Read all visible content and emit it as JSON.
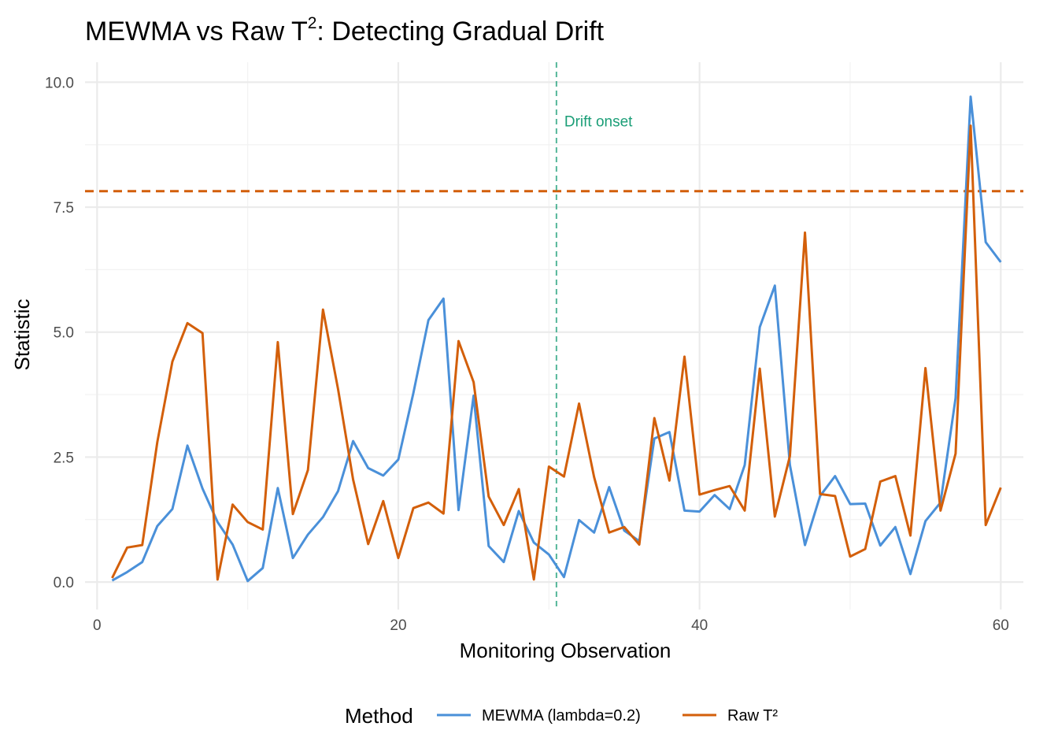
{
  "chart_data": {
    "type": "line",
    "title_main": "MEWMA vs Raw T",
    "title_sup": "2",
    "title_tail": ": Detecting Gradual Drift",
    "xlabel": "Monitoring Observation",
    "ylabel": "Statistic",
    "xlim": [
      -0.8,
      61.5
    ],
    "ylim": [
      -0.55,
      10.4
    ],
    "x_ticks": [
      0,
      20,
      40,
      60
    ],
    "x_tick_labels": [
      "0",
      "20",
      "40",
      "60"
    ],
    "y_ticks": [
      0,
      2.5,
      5,
      7.5,
      10
    ],
    "y_tick_labels": [
      "0.0",
      "2.5",
      "5.0",
      "7.5",
      "10.0"
    ],
    "x": [
      1,
      2,
      3,
      4,
      5,
      6,
      7,
      8,
      9,
      10,
      11,
      12,
      13,
      14,
      15,
      16,
      17,
      18,
      19,
      20,
      21,
      22,
      23,
      24,
      25,
      26,
      27,
      28,
      29,
      30,
      31,
      32,
      33,
      34,
      35,
      36,
      37,
      38,
      39,
      40,
      41,
      42,
      43,
      44,
      45,
      46,
      47,
      48,
      49,
      50,
      51,
      52,
      53,
      54,
      55,
      56,
      57,
      58,
      59,
      60
    ],
    "series": [
      {
        "name": "MEWMA (lambda=0.2)",
        "color": "#4a90d9",
        "values": [
          0.03,
          0.2,
          0.4,
          1.12,
          1.46,
          2.73,
          1.87,
          1.2,
          0.75,
          0.02,
          0.28,
          1.88,
          0.48,
          0.95,
          1.3,
          1.82,
          2.82,
          2.28,
          2.13,
          2.45,
          3.78,
          5.24,
          5.67,
          1.44,
          3.73,
          0.72,
          0.4,
          1.42,
          0.79,
          0.55,
          0.1,
          1.24,
          0.99,
          1.9,
          1.03,
          0.82,
          2.87,
          3.0,
          1.43,
          1.41,
          1.74,
          1.46,
          2.34,
          5.1,
          5.93,
          2.34,
          0.74,
          1.72,
          2.12,
          1.56,
          1.57,
          0.73,
          1.1,
          0.16,
          1.22,
          1.59,
          3.68,
          9.71,
          6.8,
          6.4
        ]
      },
      {
        "name": "Raw T²",
        "color": "#d35f0a",
        "values": [
          0.08,
          0.69,
          0.74,
          2.8,
          4.41,
          5.18,
          4.98,
          0.05,
          1.55,
          1.2,
          1.05,
          4.8,
          1.36,
          2.24,
          5.45,
          3.86,
          2.05,
          0.76,
          1.62,
          0.48,
          1.48,
          1.59,
          1.37,
          4.82,
          4.0,
          1.71,
          1.14,
          1.86,
          0.05,
          2.31,
          2.11,
          3.57,
          2.1,
          0.99,
          1.1,
          0.75,
          3.28,
          2.03,
          4.51,
          1.75,
          1.84,
          1.92,
          1.43,
          4.27,
          1.31,
          2.52,
          6.99,
          1.76,
          1.72,
          0.51,
          0.66,
          2.01,
          2.12,
          0.93,
          4.28,
          1.43,
          2.57,
          9.13,
          1.14,
          1.89
        ]
      }
    ],
    "control_limit": {
      "y": 7.82,
      "color": "#d35f0a"
    },
    "drift_onset": {
      "x": 30.5,
      "label": "Drift onset",
      "color": "#1b9e77"
    },
    "legend": {
      "title": "Method",
      "position": "bottom"
    },
    "grid": true
  }
}
